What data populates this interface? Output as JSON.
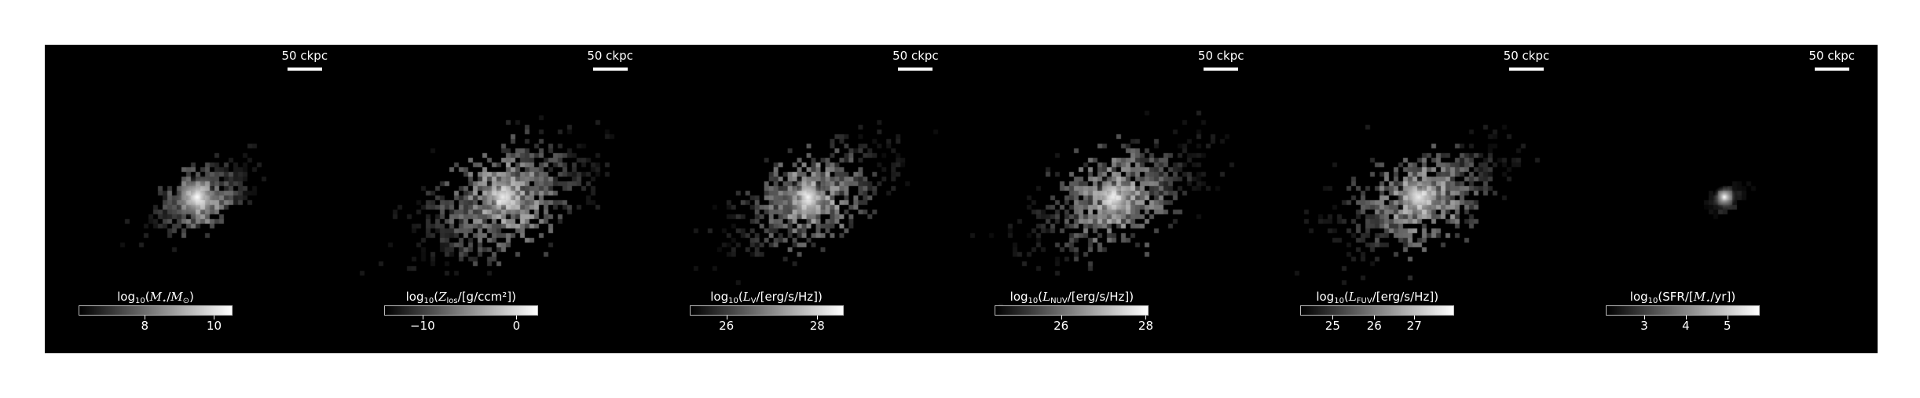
{
  "panels": [
    {
      "scalebar": "50 ckpc",
      "colorbar": {
        "pre": "log",
        "sub": "10",
        "open": "(",
        "sym": "M",
        "symsub": "⋆",
        "mid": "/",
        "sym2": "M",
        "sym2sub": "⊙",
        "post": ")",
        "ticks": [
          "8",
          "10"
        ],
        "tick_fractions": [
          0.43,
          0.88
        ]
      },
      "image": {
        "spread": 0.55,
        "density": 0.65,
        "core": 1.0,
        "sfr_like": false
      }
    },
    {
      "scalebar": "50 ckpc",
      "colorbar": {
        "pre": "log",
        "sub": "10",
        "open": "(",
        "sym": "Z",
        "symsub": "los",
        "mid": "/[g/ccm²]",
        "sym2": "",
        "sym2sub": "",
        "post": ")",
        "ticks": [
          "−10",
          "0"
        ],
        "tick_fractions": [
          0.25,
          0.86
        ]
      },
      "image": {
        "spread": 1.0,
        "density": 1.0,
        "core": 0.9,
        "sfr_like": false
      }
    },
    {
      "scalebar": "50 ckpc",
      "colorbar": {
        "pre": "log",
        "sub": "10",
        "open": "(",
        "sym": "L",
        "symsub": "V",
        "mid": "/[erg/s/Hz]",
        "sym2": "",
        "sym2sub": "",
        "post": ")",
        "ticks": [
          "26",
          "28"
        ],
        "tick_fractions": [
          0.24,
          0.83
        ]
      },
      "image": {
        "spread": 0.9,
        "density": 0.75,
        "core": 0.95,
        "sfr_like": false
      }
    },
    {
      "scalebar": "50 ckpc",
      "colorbar": {
        "pre": "log",
        "sub": "10",
        "open": "(",
        "sym": "L",
        "symsub": "NUV",
        "mid": "/[erg/s/Hz]",
        "sym2": "",
        "sym2sub": "",
        "post": ")",
        "ticks": [
          "26",
          "28"
        ],
        "tick_fractions": [
          0.43,
          0.98
        ]
      },
      "image": {
        "spread": 0.95,
        "density": 0.85,
        "core": 0.9,
        "sfr_like": false
      }
    },
    {
      "scalebar": "50 ckpc",
      "colorbar": {
        "pre": "log",
        "sub": "10",
        "open": "(",
        "sym": "L",
        "symsub": "FUV",
        "mid": "/[erg/s/Hz]",
        "sym2": "",
        "sym2sub": "",
        "post": ")",
        "ticks": [
          "25",
          "26",
          "27"
        ],
        "tick_fractions": [
          0.21,
          0.48,
          0.74
        ]
      },
      "image": {
        "spread": 0.95,
        "density": 0.85,
        "core": 0.9,
        "sfr_like": false
      }
    },
    {
      "scalebar": "50 ckpc",
      "colorbar": {
        "pre": "log",
        "sub": "10",
        "open": "(SFR/[",
        "sym": "M",
        "symsub": "⋆",
        "mid": "/yr]",
        "sym2": "",
        "sym2sub": "",
        "post": ")",
        "ticks": [
          "3",
          "4",
          "5"
        ],
        "tick_fractions": [
          0.25,
          0.52,
          0.79
        ]
      },
      "image": {
        "spread": 0.2,
        "density": 0.3,
        "core": 1.0,
        "sfr_like": true
      }
    }
  ]
}
